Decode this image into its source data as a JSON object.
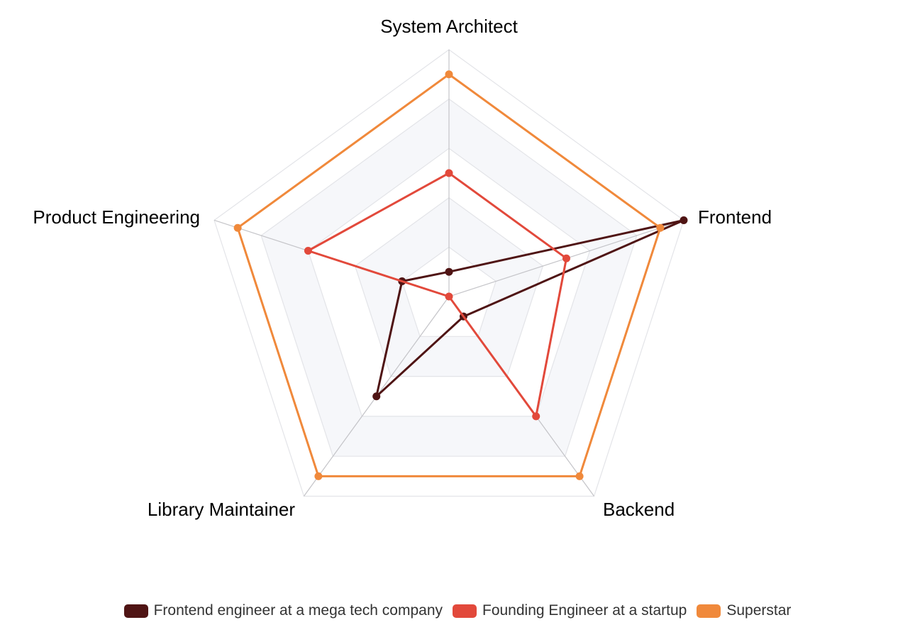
{
  "chart_data": {
    "type": "radar",
    "indicators": [
      "System Architect",
      "Frontend",
      "Backend",
      "Library Maintainer",
      "Product Engineering"
    ],
    "max": 10,
    "split_levels": 5,
    "split_area_colors": [
      "#ffffff",
      "#f6f7fa"
    ],
    "series": [
      {
        "name": "Frontend engineer at a mega tech company",
        "color": "#4f1414",
        "values": [
          1,
          10,
          1,
          5,
          2
        ]
      },
      {
        "name": "Founding Engineer at a startup",
        "color": "#e2493b",
        "values": [
          5,
          5,
          6,
          0,
          6
        ]
      },
      {
        "name": "Superstar",
        "color": "#f0893b",
        "values": [
          9,
          9,
          9,
          9,
          9
        ]
      }
    ],
    "legend_position": "bottom-center"
  }
}
